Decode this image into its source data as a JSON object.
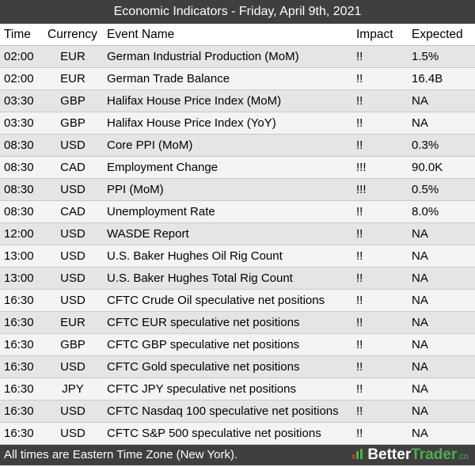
{
  "title": "Economic Indicators - Friday, April 9th, 2021",
  "columns": {
    "time": "Time",
    "currency": "Currency",
    "event": "Event Name",
    "impact": "Impact",
    "expected": "Expected"
  },
  "rows": [
    {
      "time": "02:00",
      "currency": "EUR",
      "event": "German Industrial Production (MoM)",
      "impact": "!!",
      "expected": "1.5%"
    },
    {
      "time": "02:00",
      "currency": "EUR",
      "event": "German Trade Balance",
      "impact": "!!",
      "expected": "16.4B"
    },
    {
      "time": "03:30",
      "currency": "GBP",
      "event": "Halifax House Price Index (MoM)",
      "impact": "!!",
      "expected": "NA"
    },
    {
      "time": "03:30",
      "currency": "GBP",
      "event": "Halifax House Price Index (YoY)",
      "impact": "!!",
      "expected": "NA"
    },
    {
      "time": "08:30",
      "currency": "USD",
      "event": "Core PPI (MoM)",
      "impact": "!!",
      "expected": "0.3%"
    },
    {
      "time": "08:30",
      "currency": "CAD",
      "event": "Employment Change",
      "impact": "!!!",
      "expected": "90.0K"
    },
    {
      "time": "08:30",
      "currency": "USD",
      "event": "PPI (MoM)",
      "impact": "!!!",
      "expected": "0.5%"
    },
    {
      "time": "08:30",
      "currency": "CAD",
      "event": "Unemployment Rate",
      "impact": "!!",
      "expected": "8.0%"
    },
    {
      "time": "12:00",
      "currency": "USD",
      "event": "WASDE Report",
      "impact": "!!",
      "expected": "NA"
    },
    {
      "time": "13:00",
      "currency": "USD",
      "event": "U.S. Baker Hughes Oil Rig Count",
      "impact": "!!",
      "expected": "NA"
    },
    {
      "time": "13:00",
      "currency": "USD",
      "event": "U.S. Baker Hughes Total Rig Count",
      "impact": "!!",
      "expected": "NA"
    },
    {
      "time": "16:30",
      "currency": "USD",
      "event": "CFTC Crude Oil speculative net positions",
      "impact": "!!",
      "expected": "NA"
    },
    {
      "time": "16:30",
      "currency": "EUR",
      "event": "CFTC EUR speculative net positions",
      "impact": "!!",
      "expected": "NA"
    },
    {
      "time": "16:30",
      "currency": "GBP",
      "event": "CFTC GBP speculative net positions",
      "impact": "!!",
      "expected": "NA"
    },
    {
      "time": "16:30",
      "currency": "USD",
      "event": "CFTC Gold speculative net positions",
      "impact": "!!",
      "expected": "NA"
    },
    {
      "time": "16:30",
      "currency": "JPY",
      "event": "CFTC JPY speculative net positions",
      "impact": "!!",
      "expected": "NA"
    },
    {
      "time": "16:30",
      "currency": "USD",
      "event": "CFTC Nasdaq 100 speculative net positions",
      "impact": "!!",
      "expected": "NA"
    },
    {
      "time": "16:30",
      "currency": "USD",
      "event": "CFTC S&P 500 speculative net positions",
      "impact": "!!",
      "expected": "NA"
    }
  ],
  "footer": {
    "note": "All times are Eastern Time Zone (New York).",
    "brand_part1": "Better",
    "brand_part2": "Trader",
    "brand_suffix": ".co",
    "brand_icon": "bar-chart-logo-icon",
    "accent_color": "#4caf50"
  }
}
